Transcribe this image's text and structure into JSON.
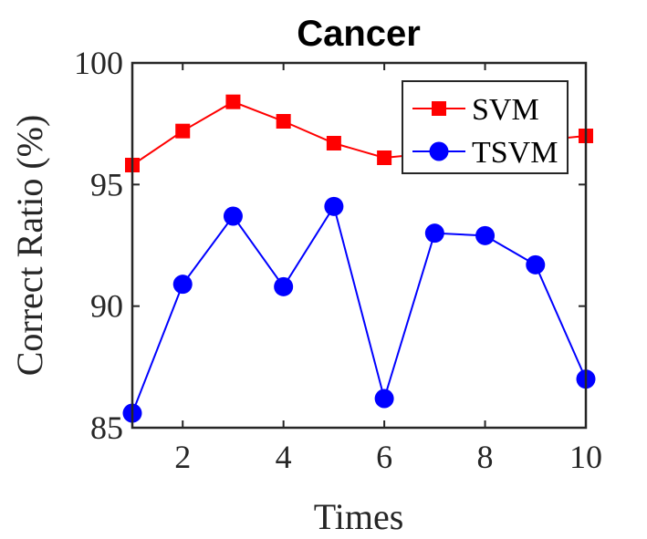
{
  "chart_data": {
    "type": "line",
    "title": "Cancer",
    "xlabel": "Times",
    "ylabel": "Correct Ratio (%)",
    "x": [
      1,
      2,
      3,
      4,
      5,
      6,
      7,
      8,
      9,
      10
    ],
    "xlim": [
      1,
      10
    ],
    "ylim": [
      85,
      100
    ],
    "xticks": [
      2,
      4,
      6,
      8,
      10
    ],
    "yticks": [
      85,
      90,
      95,
      100
    ],
    "grid": false,
    "legend_position": "top-right",
    "series": [
      {
        "name": "SVM",
        "color": "#ff0000",
        "marker": "square",
        "values": [
          95.8,
          97.2,
          98.4,
          97.6,
          96.7,
          96.1,
          96.3,
          96.6,
          96.8,
          97.0
        ]
      },
      {
        "name": "TSVM",
        "color": "#0000ff",
        "marker": "circle",
        "values": [
          85.6,
          90.9,
          93.7,
          90.8,
          94.1,
          86.2,
          93.0,
          92.9,
          91.7,
          87.0
        ]
      }
    ]
  }
}
